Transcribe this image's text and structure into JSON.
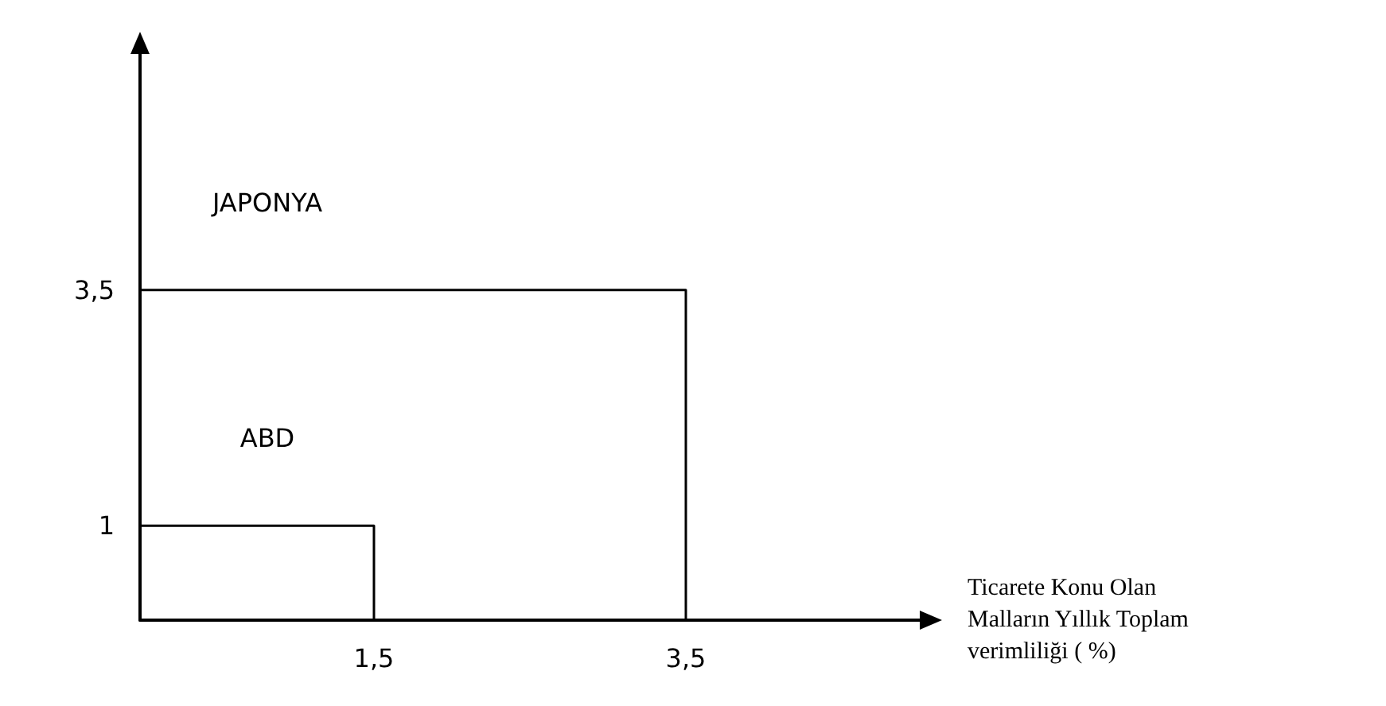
{
  "chart_data": {
    "type": "line",
    "xlabel": "Ticarete Konu Olan Malların Yıllık Toplam verimliliği ( %)",
    "xlim": [
      0,
      5
    ],
    "xticks": [
      {
        "value": 1.5,
        "label": "1,5"
      },
      {
        "value": 3.5,
        "label": "3,5"
      }
    ],
    "ylim": [
      0,
      6
    ],
    "yticks": [
      {
        "value": 1,
        "label": "1"
      },
      {
        "value": 3.5,
        "label": "3,5"
      }
    ],
    "series": [
      {
        "color": "#000000",
        "x": [
          0,
          3.5,
          3.5
        ],
        "values": [
          3.5,
          3.5,
          0
        ]
      },
      {
        "color": "#000000",
        "x": [
          0,
          1.5,
          1.5
        ],
        "values": [
          1,
          1,
          0
        ]
      }
    ],
    "annotations": [
      "JAPONYA",
      "ABD"
    ],
    "grid": false,
    "marker": "none",
    "line_style": "solid"
  }
}
